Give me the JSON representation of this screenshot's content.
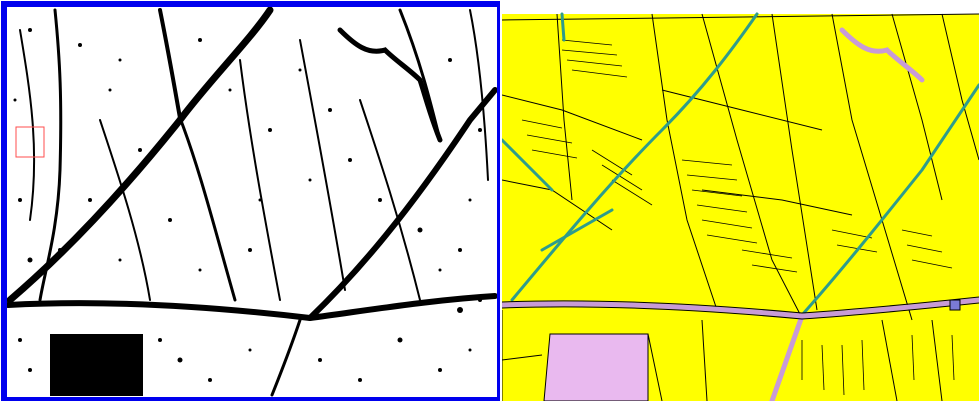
{
  "panels": {
    "left": {
      "kind": "binary segmentation mask",
      "frame_color": "#0000ee",
      "foreground_color": "#000000",
      "background_color": "#ffffff",
      "selection_box_color": "#ff4d4d"
    },
    "right": {
      "kind": "parcel land-use map",
      "colors": {
        "field": "#ffff00",
        "parcel_border": "#000000",
        "canal": "#2e9c8c",
        "road": "#d8a9e6",
        "built_up": "#e9b9ef"
      }
    }
  }
}
